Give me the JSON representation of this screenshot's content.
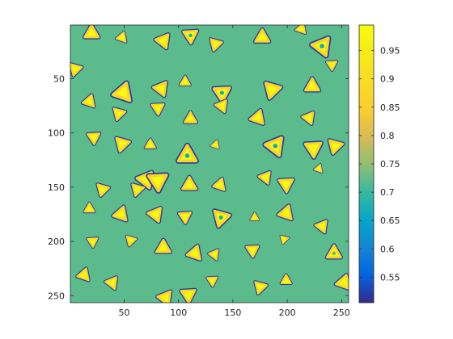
{
  "chart_data": {
    "type": "heatmap",
    "title": "",
    "xlabel": "",
    "ylabel": "",
    "xlim": [
      1,
      256
    ],
    "ylim": [
      1,
      256
    ],
    "y_direction": "reverse",
    "grid": false,
    "colormap": "parula",
    "background_value": 0.72,
    "x_ticks": [
      50,
      100,
      150,
      200,
      250
    ],
    "y_ticks": [
      50,
      100,
      150,
      200,
      250
    ],
    "colorbar": {
      "location": "right",
      "limits": [
        0.505,
        0.995
      ],
      "ticks": [
        0.55,
        0.6,
        0.65,
        0.7,
        0.75,
        0.8,
        0.85,
        0.9,
        0.95
      ],
      "tick_labels": [
        "0.55",
        "0.6",
        "0.65",
        "0.7",
        "0.75",
        "0.8",
        "0.85",
        "0.9",
        "0.95"
      ]
    },
    "blob_shape": "rounded-triangle",
    "blob_interior_value": 0.99,
    "blob_rim_value": 0.52,
    "blobs": [
      {
        "x": 20,
        "y": 8,
        "r": 7
      },
      {
        "x": 48,
        "y": 12,
        "r": 5
      },
      {
        "x": 86,
        "y": 15,
        "r": 7
      },
      {
        "x": 111,
        "y": 10,
        "r": 7,
        "center": 0.66
      },
      {
        "x": 134,
        "y": 18,
        "r": 6
      },
      {
        "x": 177,
        "y": 12,
        "r": 7
      },
      {
        "x": 213,
        "y": 4,
        "r": 5
      },
      {
        "x": 232,
        "y": 20,
        "r": 9,
        "center": 0.66
      },
      {
        "x": 241,
        "y": 37,
        "r": 5
      },
      {
        "x": 5,
        "y": 41,
        "r": 6
      },
      {
        "x": 106,
        "y": 53,
        "r": 5
      },
      {
        "x": 49,
        "y": 63,
        "r": 9
      },
      {
        "x": 84,
        "y": 59,
        "r": 7
      },
      {
        "x": 140,
        "y": 63,
        "r": 8,
        "center": 0.66
      },
      {
        "x": 186,
        "y": 60,
        "r": 8
      },
      {
        "x": 223,
        "y": 57,
        "r": 7
      },
      {
        "x": 18,
        "y": 71,
        "r": 6
      },
      {
        "x": 140,
        "y": 75,
        "r": 6
      },
      {
        "x": 81,
        "y": 77,
        "r": 6
      },
      {
        "x": 45,
        "y": 82,
        "r": 6
      },
      {
        "x": 111,
        "y": 87,
        "r": 6
      },
      {
        "x": 173,
        "y": 86,
        "r": 7
      },
      {
        "x": 220,
        "y": 86,
        "r": 6
      },
      {
        "x": 22,
        "y": 104,
        "r": 6
      },
      {
        "x": 48,
        "y": 110,
        "r": 7
      },
      {
        "x": 74,
        "y": 111,
        "r": 5
      },
      {
        "x": 134,
        "y": 111,
        "r": 4
      },
      {
        "x": 189,
        "y": 112,
        "r": 9,
        "center": 0.66
      },
      {
        "x": 224,
        "y": 114,
        "r": 8
      },
      {
        "x": 244,
        "y": 112,
        "r": 7
      },
      {
        "x": 108,
        "y": 121,
        "r": 9,
        "center": 0.66
      },
      {
        "x": 229,
        "y": 133,
        "r": 4
      },
      {
        "x": 70,
        "y": 143,
        "r": 8
      },
      {
        "x": 81,
        "y": 144,
        "r": 9
      },
      {
        "x": 62,
        "y": 152,
        "r": 6
      },
      {
        "x": 110,
        "y": 148,
        "r": 7
      },
      {
        "x": 138,
        "y": 148,
        "r": 6
      },
      {
        "x": 180,
        "y": 141,
        "r": 6
      },
      {
        "x": 199,
        "y": 147,
        "r": 7
      },
      {
        "x": 30,
        "y": 152,
        "r": 6
      },
      {
        "x": 18,
        "y": 170,
        "r": 5
      },
      {
        "x": 47,
        "y": 175,
        "r": 7
      },
      {
        "x": 79,
        "y": 175,
        "r": 7
      },
      {
        "x": 106,
        "y": 177,
        "r": 6
      },
      {
        "x": 139,
        "y": 178,
        "r": 8,
        "center": 0.66
      },
      {
        "x": 170,
        "y": 178,
        "r": 4
      },
      {
        "x": 199,
        "y": 174,
        "r": 7
      },
      {
        "x": 232,
        "y": 186,
        "r": 6
      },
      {
        "x": 21,
        "y": 200,
        "r": 5
      },
      {
        "x": 56,
        "y": 199,
        "r": 5
      },
      {
        "x": 86,
        "y": 206,
        "r": 7
      },
      {
        "x": 115,
        "y": 211,
        "r": 7
      },
      {
        "x": 133,
        "y": 212,
        "r": 5
      },
      {
        "x": 168,
        "y": 208,
        "r": 6
      },
      {
        "x": 197,
        "y": 198,
        "r": 4
      },
      {
        "x": 243,
        "y": 211,
        "r": 7,
        "center": 0.72
      },
      {
        "x": 13,
        "y": 231,
        "r": 6
      },
      {
        "x": 39,
        "y": 238,
        "r": 6
      },
      {
        "x": 131,
        "y": 236,
        "r": 5
      },
      {
        "x": 175,
        "y": 242,
        "r": 6
      },
      {
        "x": 199,
        "y": 236,
        "r": 5
      },
      {
        "x": 252,
        "y": 238,
        "r": 7
      },
      {
        "x": 88,
        "y": 252,
        "r": 7
      },
      {
        "x": 109,
        "y": 249,
        "r": 7
      }
    ]
  }
}
